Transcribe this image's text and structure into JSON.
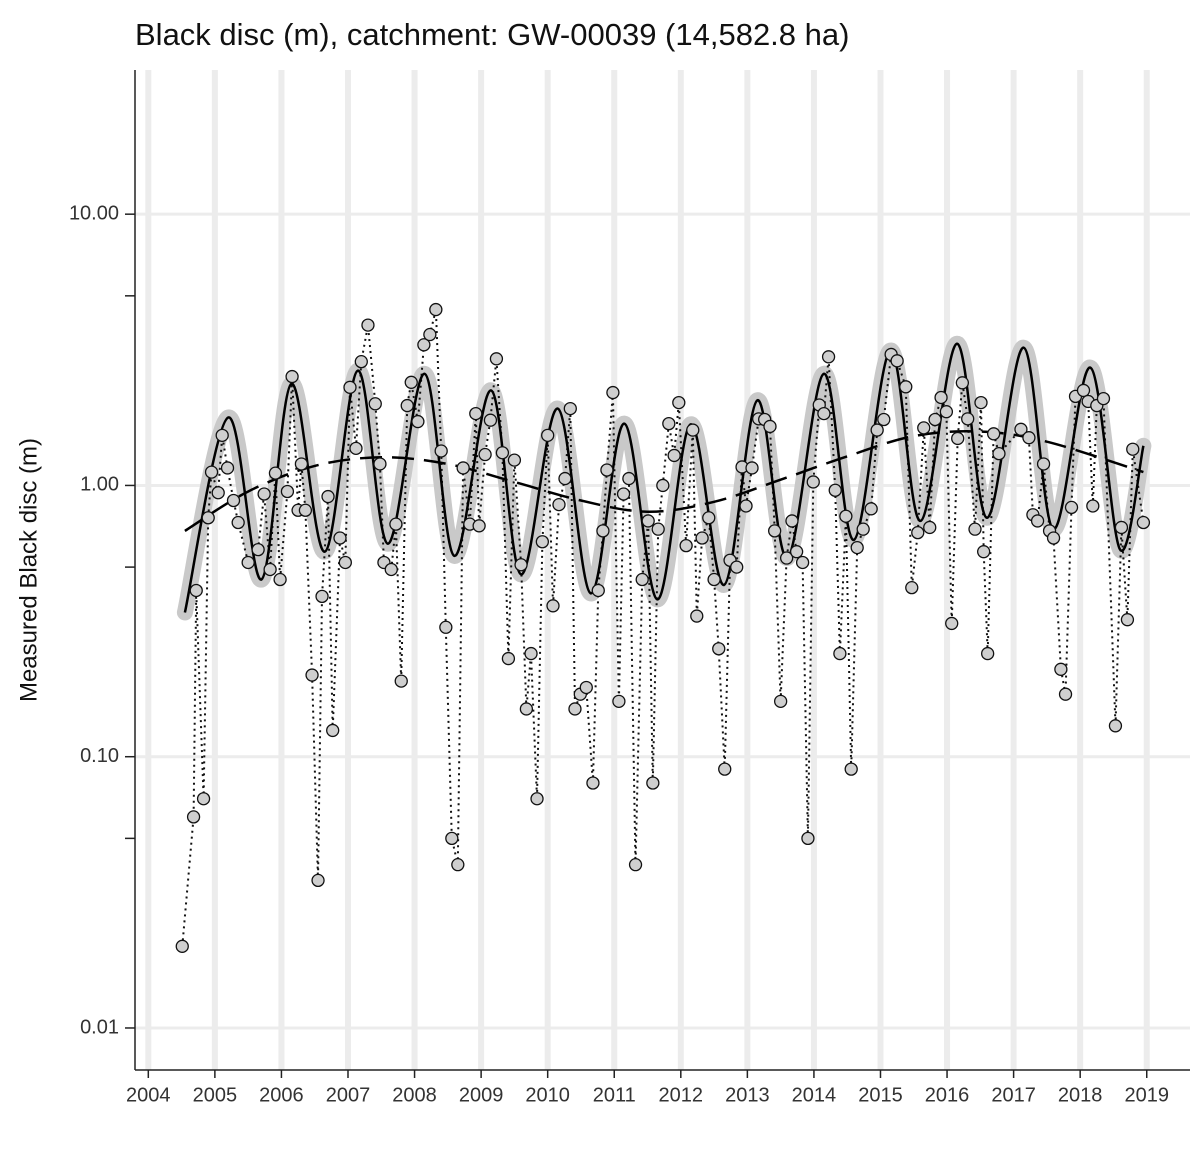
{
  "chart_data": {
    "type": "scatter",
    "title": "Black disc (m), catchment: GW-00039 (14,582.8 ha)",
    "ylabel": "Measured Black disc (m)",
    "log_y": true,
    "grid": true,
    "xlim": [
      2003.8,
      2019.65
    ],
    "ylim": [
      0.007,
      34
    ],
    "xticks": [
      2004,
      2005,
      2006,
      2007,
      2008,
      2009,
      2010,
      2011,
      2012,
      2013,
      2014,
      2015,
      2016,
      2017,
      2018,
      2019
    ],
    "yticks": [
      {
        "value": 10,
        "label": "10.00"
      },
      {
        "value": 1,
        "label": "1.00"
      },
      {
        "value": 0.1,
        "label": "0.10"
      },
      {
        "value": 0.01,
        "label": "0.01"
      }
    ],
    "y_minor_ticks": [
      5,
      0.5,
      0.05
    ],
    "measurements": {
      "color": "#cfcfcf",
      "x": [
        2004.51,
        2004.68,
        2004.72,
        2004.83,
        2004.9,
        2004.95,
        2005.05,
        2005.11,
        2005.19,
        2005.28,
        2005.35,
        2005.5,
        2005.65,
        2005.74,
        2005.83,
        2005.91,
        2005.98,
        2006.09,
        2006.16,
        2006.25,
        2006.3,
        2006.36,
        2006.46,
        2006.55,
        2006.61,
        2006.7,
        2006.77,
        2006.88,
        2006.96,
        2007.03,
        2007.12,
        2007.2,
        2007.3,
        2007.41,
        2007.48,
        2007.54,
        2007.65,
        2007.72,
        2007.8,
        2007.89,
        2007.95,
        2008.05,
        2008.14,
        2008.23,
        2008.32,
        2008.4,
        2008.47,
        2008.56,
        2008.65,
        2008.73,
        2008.83,
        2008.92,
        2008.97,
        2009.06,
        2009.14,
        2009.23,
        2009.32,
        2009.41,
        2009.5,
        2009.6,
        2009.68,
        2009.75,
        2009.84,
        2009.92,
        2010.0,
        2010.08,
        2010.17,
        2010.26,
        2010.34,
        2010.41,
        2010.49,
        2010.58,
        2010.68,
        2010.76,
        2010.83,
        2010.89,
        2010.98,
        2011.07,
        2011.14,
        2011.22,
        2011.32,
        2011.42,
        2011.51,
        2011.58,
        2011.66,
        2011.73,
        2011.82,
        2011.9,
        2011.97,
        2012.08,
        2012.18,
        2012.24,
        2012.32,
        2012.42,
        2012.5,
        2012.57,
        2012.66,
        2012.74,
        2012.84,
        2012.92,
        2012.98,
        2013.07,
        2013.17,
        2013.26,
        2013.34,
        2013.41,
        2013.5,
        2013.59,
        2013.67,
        2013.74,
        2013.83,
        2013.91,
        2013.99,
        2014.08,
        2014.15,
        2014.22,
        2014.32,
        2014.39,
        2014.48,
        2014.56,
        2014.65,
        2014.74,
        2014.86,
        2014.95,
        2015.05,
        2015.16,
        2015.25,
        2015.38,
        2015.47,
        2015.56,
        2015.65,
        2015.74,
        2015.82,
        2015.91,
        2015.99,
        2016.07,
        2016.16,
        2016.23,
        2016.31,
        2016.42,
        2016.51,
        2016.55,
        2016.61,
        2016.7,
        2016.78,
        2017.11,
        2017.23,
        2017.29,
        2017.36,
        2017.45,
        2017.54,
        2017.6,
        2017.71,
        2017.78,
        2017.87,
        2017.93,
        2018.05,
        2018.12,
        2018.19,
        2018.25,
        2018.35,
        2018.53,
        2018.62,
        2018.71,
        2018.79,
        2018.95
      ],
      "values": [
        0.02,
        0.06,
        0.41,
        0.07,
        0.76,
        1.12,
        0.94,
        1.53,
        1.16,
        0.88,
        0.73,
        0.52,
        0.58,
        0.93,
        0.49,
        1.11,
        0.45,
        0.95,
        2.52,
        0.81,
        1.2,
        0.81,
        0.2,
        0.035,
        0.39,
        0.91,
        0.125,
        0.64,
        0.52,
        2.3,
        1.37,
        2.86,
        3.9,
        2.0,
        1.2,
        0.52,
        0.49,
        0.72,
        0.19,
        1.97,
        2.4,
        1.72,
        3.3,
        3.6,
        4.45,
        1.34,
        0.3,
        0.05,
        0.04,
        1.16,
        0.72,
        1.84,
        0.71,
        1.3,
        1.74,
        2.93,
        1.32,
        0.23,
        1.24,
        0.51,
        0.15,
        0.24,
        0.07,
        0.62,
        1.53,
        0.36,
        0.85,
        1.06,
        1.92,
        0.15,
        0.17,
        0.18,
        0.08,
        0.41,
        0.68,
        1.14,
        2.2,
        0.16,
        0.93,
        1.06,
        0.04,
        0.45,
        0.74,
        0.08,
        0.69,
        1.0,
        1.69,
        1.29,
        2.02,
        0.6,
        1.6,
        0.33,
        0.64,
        0.76,
        0.45,
        0.25,
        0.09,
        0.53,
        0.5,
        1.17,
        0.84,
        1.16,
        1.76,
        1.75,
        1.65,
        0.68,
        0.16,
        0.54,
        0.74,
        0.57,
        0.52,
        0.05,
        1.03,
        1.98,
        1.84,
        2.98,
        0.96,
        0.24,
        0.77,
        0.09,
        0.59,
        0.69,
        0.82,
        1.6,
        1.75,
        3.04,
        2.88,
        2.31,
        0.42,
        0.67,
        1.63,
        0.7,
        1.75,
        2.11,
        1.87,
        0.31,
        1.49,
        2.39,
        1.76,
        0.69,
        2.02,
        0.57,
        0.24,
        1.55,
        1.31,
        1.61,
        1.5,
        0.78,
        0.74,
        1.2,
        0.68,
        0.64,
        0.21,
        0.17,
        0.83,
        2.13,
        2.24,
        2.04,
        0.84,
        1.97,
        2.09,
        0.13,
        0.7,
        0.32,
        1.36,
        0.73
      ]
    },
    "seasonal_fit": {
      "color": "#000000",
      "band_color": "#c9c9c9",
      "x": [
        2004.55,
        2005.2,
        2005.7,
        2006.15,
        2006.65,
        2007.15,
        2007.6,
        2008.15,
        2008.6,
        2009.15,
        2009.6,
        2010.15,
        2010.65,
        2011.15,
        2011.65,
        2012.15,
        2012.65,
        2013.15,
        2013.6,
        2014.15,
        2014.6,
        2015.15,
        2015.6,
        2016.15,
        2016.6,
        2017.15,
        2017.6,
        2018.15,
        2018.6,
        2018.95
      ],
      "values": [
        0.34,
        1.78,
        0.45,
        2.37,
        0.57,
        2.65,
        0.61,
        2.58,
        0.55,
        2.24,
        0.47,
        1.92,
        0.4,
        1.69,
        0.38,
        1.68,
        0.43,
        2.06,
        0.54,
        2.58,
        0.63,
        3.14,
        0.74,
        3.33,
        0.76,
        3.22,
        0.69,
        2.72,
        0.58,
        1.4
      ]
    },
    "trend": {
      "color": "#000000",
      "dashed": true,
      "x": [
        2004.55,
        2005.5,
        2006.5,
        2007.5,
        2008.5,
        2009.5,
        2010.5,
        2011.5,
        2012.5,
        2013.5,
        2014.5,
        2015.5,
        2016.5,
        2017.5,
        2018.95
      ],
      "values": [
        0.68,
        0.95,
        1.18,
        1.27,
        1.2,
        1.03,
        0.88,
        0.8,
        0.87,
        1.05,
        1.28,
        1.52,
        1.58,
        1.45,
        1.12
      ]
    }
  }
}
